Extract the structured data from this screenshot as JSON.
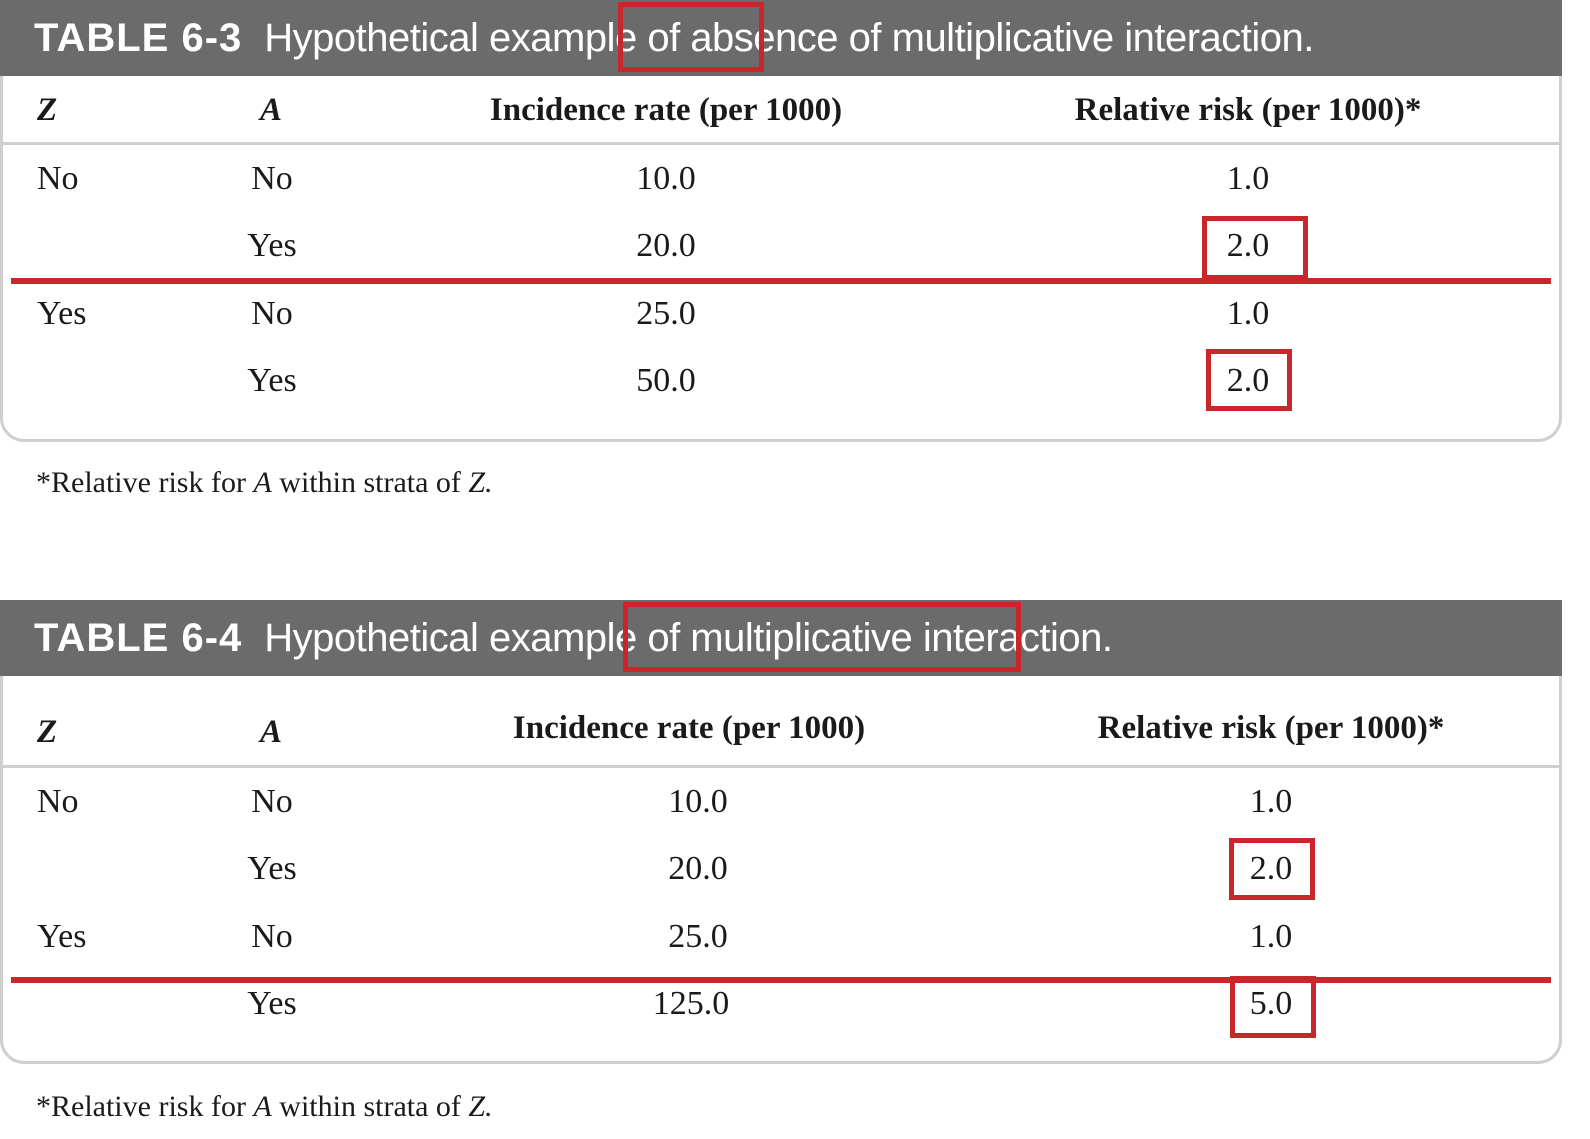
{
  "tables": [
    {
      "label": "TABLE 6-3",
      "title_before": "Hypothetical example of ",
      "title_highlight": "absence",
      "title_after": " of multiplicative interaction.",
      "columns": [
        "Z",
        "A",
        "Incidence rate (per 1000)",
        "Relative risk (per 1000)*"
      ],
      "rows": [
        {
          "z": "No",
          "a": "No",
          "rate": "10.0",
          "rr": "1.0",
          "highlight": false
        },
        {
          "z": "",
          "a": "Yes",
          "rate": "20.0",
          "rr": "2.0",
          "highlight": true
        },
        {
          "z": "Yes",
          "a": "No",
          "rate": "25.0",
          "rr": "1.0",
          "highlight": false
        },
        {
          "z": "",
          "a": "Yes",
          "rate": "50.0",
          "rr": "2.0",
          "highlight": true
        }
      ],
      "footnote_prefix": "*Relative risk for ",
      "footnote_var1": "A",
      "footnote_mid": " within strata of ",
      "footnote_var2": "Z."
    },
    {
      "label": "TABLE 6-4",
      "title_before": "Hypothetical example of ",
      "title_highlight": "multiplicative interaction.",
      "title_after": "",
      "columns": [
        "Z",
        "A",
        "Incidence rate (per 1000)",
        "Relative risk (per 1000)*"
      ],
      "rows": [
        {
          "z": "No",
          "a": "No",
          "rate": "10.0",
          "rr": "1.0",
          "highlight": false
        },
        {
          "z": "",
          "a": "Yes",
          "rate": "20.0",
          "rr": "2.0",
          "highlight": true
        },
        {
          "z": "Yes",
          "a": "No",
          "rate": "25.0",
          "rr": "1.0",
          "highlight": false
        },
        {
          "z": "",
          "a": "Yes",
          "rate": "125.0",
          "rr": "5.0",
          "highlight": true
        }
      ],
      "footnote_prefix": "*Relative risk for ",
      "footnote_var1": "A",
      "footnote_mid": " within strata of ",
      "footnote_var2": "Z."
    }
  ],
  "colors": {
    "title_bar": "#6b6b6b",
    "highlight": "#c8262a",
    "rule": "#cfcfcf"
  }
}
